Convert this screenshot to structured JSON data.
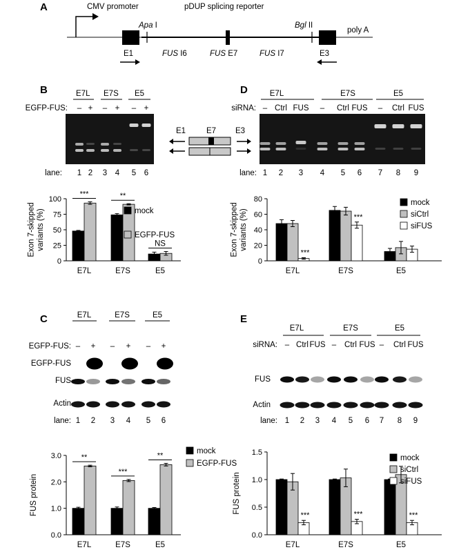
{
  "panels": {
    "A": "A",
    "B": "B",
    "C": "C",
    "D": "D",
    "E": "E"
  },
  "construct": {
    "promoter": "CMV promoter",
    "reporter": "pDUP splicing reporter",
    "apa": "Apa",
    "apa_num": "I",
    "bgl": "Bgl",
    "bgl_num": "II",
    "polya": "poly A",
    "e1": "E1",
    "e3": "E3",
    "fus": "FUS",
    "i6": "I6",
    "e7": "E7",
    "i7": "I7"
  },
  "schematic": {
    "e1": "E1",
    "e7": "E7",
    "e3": "E3"
  },
  "panelB": {
    "groups": [
      "E7L",
      "E7S",
      "E5"
    ],
    "cond_label": "EGFP-FUS:",
    "signs": [
      "–",
      "+",
      "–",
      "+",
      "–",
      "+"
    ],
    "lane_label": "lane:",
    "lanes": [
      "1",
      "2",
      "3",
      "4",
      "5",
      "6"
    ]
  },
  "panelC": {
    "groups": [
      "E7L",
      "E7S",
      "E5"
    ],
    "cond_label": "EGFP-FUS:",
    "signs": [
      "–",
      "+",
      "–",
      "+",
      "–",
      "+"
    ],
    "row_labels": [
      "EGFP-FUS",
      "FUS",
      "Actin"
    ],
    "lane_label": "lane:",
    "lanes": [
      "1",
      "2",
      "3",
      "4",
      "5",
      "6"
    ]
  },
  "panelD": {
    "groups": [
      "E7L",
      "E7S",
      "E5"
    ],
    "cond_label": "siRNA:",
    "conds": [
      "–",
      "Ctrl",
      "FUS",
      "–",
      "Ctrl",
      "FUS",
      "–",
      "Ctrl",
      "FUS"
    ],
    "lane_label": "lane:",
    "lanes": [
      "1",
      "2",
      "3",
      "4",
      "5",
      "6",
      "7",
      "8",
      "9"
    ]
  },
  "panelE": {
    "groups": [
      "E7L",
      "E7S",
      "E5"
    ],
    "cond_label": "siRNA:",
    "conds": [
      "–",
      "Ctrl",
      "FUS",
      "–",
      "Ctrl",
      "FUS",
      "–",
      "Ctrl",
      "FUS"
    ],
    "row_labels": [
      "FUS",
      "Actin"
    ],
    "lane_label": "lane:",
    "lanes": [
      "1",
      "2",
      "3",
      "4",
      "5",
      "6",
      "7",
      "8",
      "9"
    ]
  },
  "colors": {
    "mock": "#000000",
    "egfp": "#c0c0c0",
    "sictrl": "#c0c0c0",
    "sifus": "#ffffff",
    "gel": "#151515",
    "band": "#d8d8d8"
  },
  "chart_data": [
    {
      "id": "B",
      "type": "bar",
      "categories": [
        "E7L",
        "E7S",
        "E5"
      ],
      "series": [
        {
          "name": "mock",
          "values": [
            48,
            74,
            11
          ],
          "errors": [
            1,
            2,
            3
          ]
        },
        {
          "name": "EGFP-FUS",
          "values": [
            93,
            91,
            12
          ],
          "errors": [
            2,
            1,
            3
          ]
        }
      ],
      "ylabel": "Exon 7-skipped variants (%)",
      "ylim": [
        0,
        100
      ],
      "yticks": [
        0,
        25,
        50,
        75,
        100
      ],
      "ytick_labels": [
        "0",
        "25",
        "50",
        "75",
        "100"
      ],
      "significance": [
        "***",
        "**",
        "NS"
      ],
      "legend": "right"
    },
    {
      "id": "C",
      "type": "bar",
      "categories": [
        "E7L",
        "E7S",
        "E5"
      ],
      "series": [
        {
          "name": "mock",
          "values": [
            1.0,
            1.0,
            1.0
          ],
          "errors": [
            0.04,
            0.05,
            0.03
          ]
        },
        {
          "name": "EGFP-FUS",
          "values": [
            2.6,
            2.05,
            2.65
          ],
          "errors": [
            0.03,
            0.04,
            0.05
          ]
        }
      ],
      "ylabel": "FUS protein",
      "ylim": [
        0,
        3.0
      ],
      "yticks": [
        0,
        1,
        2,
        3
      ],
      "ytick_labels": [
        "0.0",
        "1.0",
        "2.0",
        "3.0"
      ],
      "significance": [
        "**",
        "***",
        "**"
      ],
      "legend": "top-right"
    },
    {
      "id": "D",
      "type": "bar",
      "categories": [
        "E7L",
        "E7S",
        "E5"
      ],
      "series": [
        {
          "name": "mock",
          "values": [
            48,
            65,
            12
          ],
          "errors": [
            5,
            5,
            4
          ]
        },
        {
          "name": "siCtrl",
          "values": [
            48,
            64,
            17
          ],
          "errors": [
            4,
            5,
            8
          ]
        },
        {
          "name": "siFUS",
          "values": [
            3,
            46,
            15
          ],
          "errors": [
            1,
            4,
            4
          ]
        }
      ],
      "ylabel": "Exon 7-skipped variants (%)",
      "ylim": [
        0,
        80
      ],
      "yticks": [
        0,
        20,
        40,
        60,
        80
      ],
      "ytick_labels": [
        "0",
        "20",
        "40",
        "60",
        "80"
      ],
      "significance": [
        "***",
        "***",
        ""
      ],
      "legend": "top-right"
    },
    {
      "id": "E",
      "type": "bar",
      "categories": [
        "E7L",
        "E7S",
        "E5"
      ],
      "series": [
        {
          "name": "mock",
          "values": [
            1.0,
            1.0,
            1.0
          ],
          "errors": [
            0.01,
            0.01,
            0.01
          ]
        },
        {
          "name": "siCtrl",
          "values": [
            0.96,
            1.03,
            1.09
          ],
          "errors": [
            0.15,
            0.16,
            0.15
          ]
        },
        {
          "name": "siFUS",
          "values": [
            0.22,
            0.24,
            0.22
          ],
          "errors": [
            0.04,
            0.04,
            0.04
          ]
        }
      ],
      "ylabel": "FUS protein",
      "ylim": [
        0,
        1.5
      ],
      "yticks": [
        0,
        0.5,
        1.0,
        1.5
      ],
      "ytick_labels": [
        "0.0",
        "0.5",
        "1.0",
        "1.5"
      ],
      "significance": [
        "***",
        "***",
        "***"
      ],
      "legend": "top-right"
    }
  ]
}
